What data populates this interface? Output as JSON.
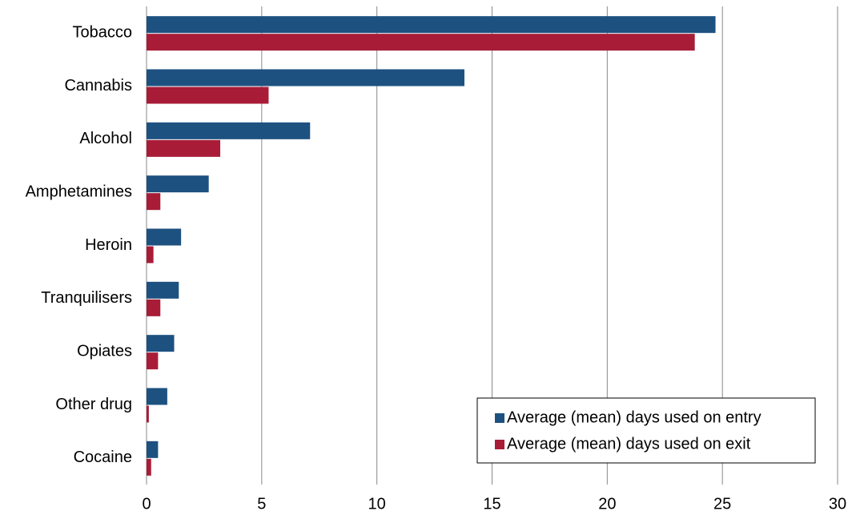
{
  "chart_data": {
    "type": "bar",
    "orientation": "horizontal",
    "categories": [
      "Tobacco",
      "Cannabis",
      "Alcohol",
      "Amphetamines",
      "Heroin",
      "Tranquilisers",
      "Opiates",
      "Other drug",
      "Cocaine"
    ],
    "series": [
      {
        "name": "Average (mean) days used on entry",
        "color": "#1d5180",
        "values": [
          24.7,
          13.8,
          7.1,
          2.7,
          1.5,
          1.4,
          1.2,
          0.9,
          0.5
        ]
      },
      {
        "name": "Average (mean) days used on exit",
        "color": "#a81c37",
        "values": [
          23.8,
          5.3,
          3.2,
          0.6,
          0.3,
          0.6,
          0.5,
          0.1,
          0.2
        ]
      }
    ],
    "xlim": [
      0,
      30
    ],
    "xticks": [
      0,
      5,
      10,
      15,
      20,
      25,
      30
    ],
    "grid": true,
    "legend": "lower right"
  }
}
